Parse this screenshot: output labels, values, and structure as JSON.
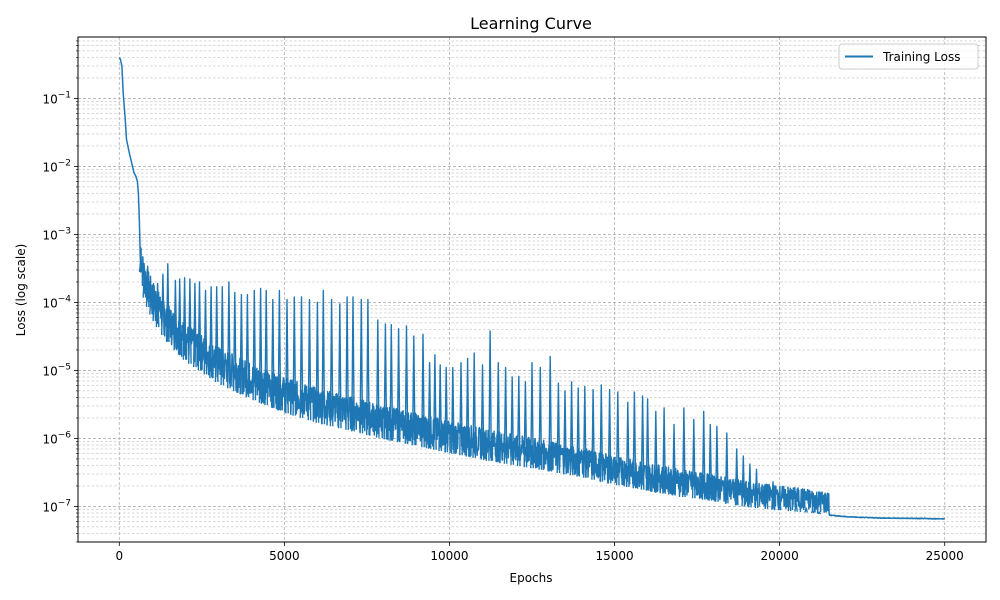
{
  "chart_data": {
    "type": "line",
    "title": "Learning Curve",
    "xlabel": "Epochs",
    "ylabel": "Loss (log scale)",
    "xlim": [
      -1250,
      26250
    ],
    "ylim": [
      3e-08,
      0.8
    ],
    "yscale": "log",
    "grid": "both (major and minor, dashed)",
    "legend_position": "top-right",
    "x_ticks": [
      0,
      5000,
      10000,
      15000,
      20000,
      25000
    ],
    "y_ticks": [
      1e-07,
      1e-06,
      1e-05,
      0.0001,
      0.001,
      0.01,
      0.1
    ],
    "y_tick_labels": [
      {
        "base": "10",
        "exp": "−7"
      },
      {
        "base": "10",
        "exp": "−6"
      },
      {
        "base": "10",
        "exp": "−5"
      },
      {
        "base": "10",
        "exp": "−4"
      },
      {
        "base": "10",
        "exp": "−3"
      },
      {
        "base": "10",
        "exp": "−2"
      },
      {
        "base": "10",
        "exp": "−1"
      }
    ],
    "series": [
      {
        "name": "Training Loss",
        "color": "#1f77b4",
        "baseline": [
          [
            0,
            0.4
          ],
          [
            30,
            0.38
          ],
          [
            80,
            0.3
          ],
          [
            120,
            0.12
          ],
          [
            180,
            0.05
          ],
          [
            220,
            0.025
          ],
          [
            300,
            0.016
          ],
          [
            400,
            0.01
          ],
          [
            450,
            0.008
          ],
          [
            500,
            0.0072
          ],
          [
            550,
            0.006
          ],
          [
            580,
            0.004
          ],
          [
            610,
            0.0015
          ],
          [
            630,
            0.0006
          ],
          [
            650,
            0.00028
          ],
          [
            700,
            0.00015
          ],
          [
            800,
            0.0001
          ],
          [
            1000,
            6e-05
          ],
          [
            1200,
            4e-05
          ],
          [
            1500,
            2.5e-05
          ],
          [
            2000,
            1.4e-05
          ],
          [
            2500,
            9.5e-06
          ],
          [
            3000,
            6.5e-06
          ],
          [
            4000,
            3.8e-06
          ],
          [
            5000,
            2.4e-06
          ],
          [
            6000,
            1.7e-06
          ],
          [
            7000,
            1.3e-06
          ],
          [
            8000,
            9.8e-07
          ],
          [
            9000,
            7.8e-07
          ],
          [
            10000,
            6.1e-07
          ],
          [
            11000,
            4.9e-07
          ],
          [
            12000,
            4e-07
          ],
          [
            13000,
            3.3e-07
          ],
          [
            14000,
            2.7e-07
          ],
          [
            15000,
            2.1e-07
          ],
          [
            16000,
            1.7e-07
          ],
          [
            17000,
            1.4e-07
          ],
          [
            18000,
            1.2e-07
          ],
          [
            19000,
            9.8e-08
          ],
          [
            20000,
            8.8e-08
          ],
          [
            21000,
            8e-08
          ],
          [
            21500,
            7.4e-08
          ],
          [
            22000,
            7e-08
          ],
          [
            23000,
            6.7e-08
          ],
          [
            24000,
            6.6e-08
          ],
          [
            25000,
            6.5e-08
          ]
        ],
        "spikes": [
          [
            650,
            0.0004
          ],
          [
            760,
            0.00031
          ],
          [
            860,
            0.00034
          ],
          [
            960,
            0.00013
          ],
          [
            1060,
            0.00015
          ],
          [
            1160,
            0.00019
          ],
          [
            1320,
            0.00026
          ],
          [
            1470,
            0.00037
          ],
          [
            1700,
            0.00021
          ],
          [
            1830,
            0.00022
          ],
          [
            1980,
            0.00023
          ],
          [
            2140,
            0.00022
          ],
          [
            2290,
            0.00019
          ],
          [
            2430,
            0.0002
          ],
          [
            2610,
            0.00015
          ],
          [
            2780,
            0.00017
          ],
          [
            2950,
            0.00017
          ],
          [
            3120,
            0.00017
          ],
          [
            3320,
            0.0002
          ],
          [
            3500,
            0.00014
          ],
          [
            3700,
            0.00013
          ],
          [
            3880,
            0.00013
          ],
          [
            4090,
            0.00015
          ],
          [
            4280,
            0.00016
          ],
          [
            4450,
            0.00015
          ],
          [
            4650,
            0.00011
          ],
          [
            4850,
            0.00015
          ],
          [
            5080,
            0.00011
          ],
          [
            5300,
            0.00012
          ],
          [
            5520,
            0.00012
          ],
          [
            5760,
            0.00011
          ],
          [
            6000,
            0.0001
          ],
          [
            6180,
            0.00015
          ],
          [
            6430,
            0.00011
          ],
          [
            6680,
            9.5e-05
          ],
          [
            6900,
            0.00012
          ],
          [
            7080,
            0.00012
          ],
          [
            7330,
            0.00011
          ],
          [
            7530,
            0.00011
          ],
          [
            7830,
            5.5e-05
          ],
          [
            8060,
            4.8e-05
          ],
          [
            8240,
            4.7e-05
          ],
          [
            8460,
            4.1e-05
          ],
          [
            8700,
            4.5e-05
          ],
          [
            8920,
            3.2e-05
          ],
          [
            9200,
            3.4e-05
          ],
          [
            9400,
            1.3e-05
          ],
          [
            9560,
            1.7e-05
          ],
          [
            9720,
            1.2e-05
          ],
          [
            9900,
            1.1e-05
          ],
          [
            10100,
            1.1e-05
          ],
          [
            10350,
            1.3e-05
          ],
          [
            10550,
            1.5e-05
          ],
          [
            10750,
            1.8e-05
          ],
          [
            11000,
            1.2e-05
          ],
          [
            11230,
            3.8e-05
          ],
          [
            11480,
            1.3e-05
          ],
          [
            11700,
            1.1e-05
          ],
          [
            11900,
            8e-06
          ],
          [
            12100,
            8.2e-06
          ],
          [
            12300,
            6.8e-06
          ],
          [
            12500,
            1.3e-05
          ],
          [
            12750,
            1.1e-05
          ],
          [
            13050,
            1.6e-05
          ],
          [
            13300,
            6.5e-06
          ],
          [
            13500,
            5e-06
          ],
          [
            13700,
            6.8e-06
          ],
          [
            13900,
            5.5e-06
          ],
          [
            14100,
            5.8e-06
          ],
          [
            14350,
            5.2e-06
          ],
          [
            14600,
            6.1e-06
          ],
          [
            14850,
            5.2e-06
          ],
          [
            15100,
            4.8e-06
          ],
          [
            15400,
            3.4e-06
          ],
          [
            15600,
            4.8e-06
          ],
          [
            15850,
            4.2e-06
          ],
          [
            16000,
            3.8e-06
          ],
          [
            16250,
            2.5e-06
          ],
          [
            16500,
            2.8e-06
          ],
          [
            16800,
            1.6e-06
          ],
          [
            17100,
            2.8e-06
          ],
          [
            17400,
            1.9e-06
          ],
          [
            17700,
            2.5e-06
          ],
          [
            17900,
            1.6e-06
          ],
          [
            18100,
            1.5e-06
          ],
          [
            18400,
            1.2e-06
          ],
          [
            18700,
            7e-07
          ],
          [
            18900,
            5.5e-07
          ],
          [
            19100,
            4.2e-07
          ],
          [
            19300,
            3.5e-07
          ],
          [
            19600,
            2.1e-07
          ],
          [
            19800,
            2.3e-07
          ],
          [
            20000,
            1.6e-07
          ],
          [
            20300,
            1.4e-07
          ],
          [
            20500,
            1.1e-07
          ],
          [
            20800,
            9.5e-08
          ],
          [
            21000,
            8.8e-08
          ],
          [
            21200,
            8.2e-08
          ]
        ]
      }
    ]
  }
}
